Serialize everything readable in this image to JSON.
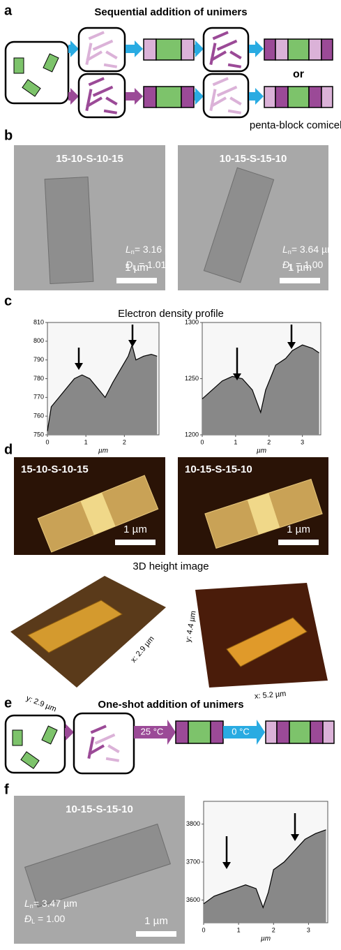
{
  "panels": {
    "a": {
      "label": "a",
      "title": "Sequential addition of unimers",
      "or": "or",
      "caption": "penta-block comicelle"
    },
    "b": {
      "label": "b",
      "images": [
        {
          "name": "15-10-S-10-15",
          "ln": {
            "symbol": "L",
            "sub": "n",
            "text": "= 3.16 µm"
          },
          "d": {
            "symbol": "Đ",
            "sub": "L",
            "text": " = 1.01"
          },
          "scale": "1 µm"
        },
        {
          "name": "10-15-S-15-10",
          "ln": {
            "symbol": "L",
            "sub": "n",
            "text": "= 3.64 µm"
          },
          "d": {
            "symbol": "Đ",
            "sub": "L",
            "text": " = 1.00"
          },
          "scale": "1 µm"
        }
      ]
    },
    "c": {
      "label": "c",
      "title": "Electron density profile"
    },
    "d": {
      "label": "d",
      "images": [
        {
          "name": "15-10-S-10-15",
          "scale": "1 µm"
        },
        {
          "name": "10-15-S-15-10",
          "scale": "1 µm"
        }
      ],
      "subtitle": "3D height image",
      "axes": [
        "y: 2.9 µm",
        "x: 2.9 µm",
        "y: 4.4 µm",
        "x: 5.2 µm"
      ]
    },
    "e": {
      "label": "e",
      "title": "One-shot addition of unimers",
      "temps": [
        "25 °C",
        "0 °C"
      ]
    },
    "f": {
      "label": "f",
      "image": {
        "name": "10-15-S-15-10",
        "ln": {
          "symbol": "L",
          "sub": "n",
          "text": "= 3.47 µm"
        },
        "d": {
          "symbol": "Đ",
          "sub": "L",
          "text": " = 1.00"
        },
        "scale": "1 µm"
      }
    }
  },
  "chart_data": [
    {
      "type": "area",
      "xlabel": "µm",
      "color": "#888888",
      "x": [
        0,
        0.1,
        0.3,
        0.5,
        0.7,
        0.9,
        1.1,
        1.3,
        1.5,
        1.7,
        1.9,
        2.1,
        2.2,
        2.3,
        2.5,
        2.7,
        2.85
      ],
      "values": [
        752,
        765,
        770,
        775,
        780,
        782,
        780,
        775,
        770,
        778,
        785,
        792,
        798,
        790,
        792,
        793,
        792
      ],
      "xlim": [
        0,
        2.9
      ],
      "xticks": [
        0,
        1,
        2
      ],
      "ylim": [
        750,
        810
      ],
      "yticks": [
        750,
        760,
        770,
        780,
        790,
        800,
        810
      ]
    },
    {
      "type": "area",
      "xlabel": "µm",
      "color": "#888888",
      "x": [
        0,
        0.3,
        0.6,
        0.9,
        1.2,
        1.5,
        1.75,
        1.9,
        2.2,
        2.5,
        2.7,
        3,
        3.3,
        3.5
      ],
      "values": [
        1232,
        1240,
        1248,
        1252,
        1250,
        1240,
        1220,
        1240,
        1262,
        1268,
        1275,
        1280,
        1277,
        1273
      ],
      "xlim": [
        0,
        3.55
      ],
      "xticks": [
        0,
        1,
        2,
        3
      ],
      "ylim": [
        1200,
        1300
      ],
      "yticks": [
        1200,
        1250,
        1300
      ]
    },
    {
      "type": "area",
      "xlabel": "µm",
      "color": "#888888",
      "x": [
        0,
        0.3,
        0.6,
        0.9,
        1.2,
        1.5,
        1.7,
        1.85,
        2,
        2.3,
        2.6,
        2.9,
        3.2,
        3.5
      ],
      "values": [
        3590,
        3610,
        3620,
        3630,
        3640,
        3630,
        3580,
        3620,
        3680,
        3700,
        3730,
        3760,
        3775,
        3785
      ],
      "xlim": [
        0,
        3.55
      ],
      "xticks": [
        0,
        1,
        2,
        3
      ],
      "ylim": [
        3540,
        3860
      ],
      "yticks": [
        3600,
        3700,
        3800
      ]
    }
  ]
}
